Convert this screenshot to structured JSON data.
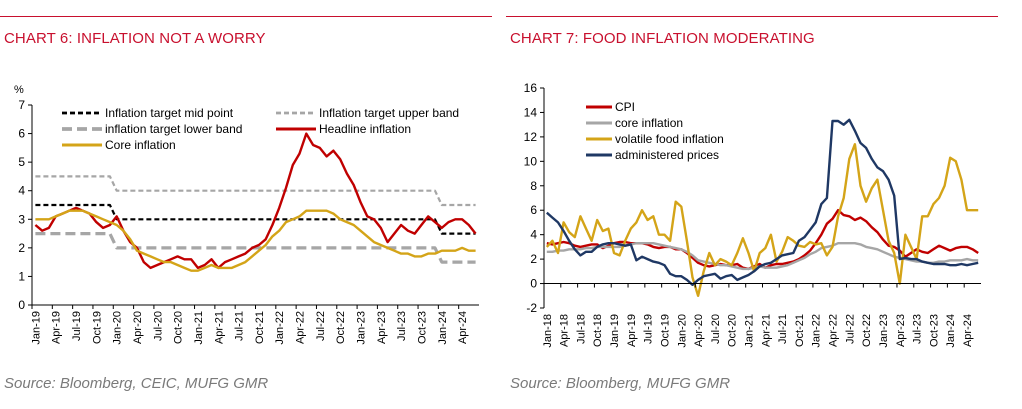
{
  "colors": {
    "rule": "#c8102e",
    "title": "#c8102e",
    "source": "#7a7a7a",
    "headline": "#c00000",
    "core": "#d4a418",
    "band_grey": "#a6a6a6",
    "mid_black": "#000000",
    "core_grey": "#a6a6a6",
    "volatile": "#d4a418",
    "administered": "#1f3864"
  },
  "chart_data": [
    {
      "type": "line",
      "title": "CHART 6: INFLATION NOT A WORRY",
      "source": "Source: Bloomberg, CEIC, MUFG GMR",
      "ylabel": "%",
      "ylim": [
        0,
        7
      ],
      "yticks": [
        "0",
        "1",
        "2",
        "3",
        "4",
        "5",
        "6",
        "7"
      ],
      "x_start": "2019-01",
      "n_months": 66,
      "xticks": [
        "Jan-19",
        "Apr-19",
        "Jul-19",
        "Oct-19",
        "Jan-20",
        "Apr-20",
        "Jul-20",
        "Oct-20",
        "Jan-21",
        "Apr-21",
        "Jul-21",
        "Oct-21",
        "Jan-22",
        "Apr-22",
        "Jul-22",
        "Oct-22",
        "Jan-23",
        "Apr-23",
        "Jul-23",
        "Oct-23",
        "Jan-24",
        "Apr-24"
      ],
      "legend": [
        "Inflation target mid point",
        "Inflation target upper band",
        "inflation target lower band",
        "Headline inflation",
        "Core inflation"
      ],
      "series": [
        {
          "name": "Inflation target mid point",
          "style": "dash-black",
          "values": [
            3.5,
            3.5,
            3.5,
            3.5,
            3.5,
            3.5,
            3.5,
            3.5,
            3.5,
            3.5,
            3.5,
            3.5,
            3,
            3,
            3,
            3,
            3,
            3,
            3,
            3,
            3,
            3,
            3,
            3,
            3,
            3,
            3,
            3,
            3,
            3,
            3,
            3,
            3,
            3,
            3,
            3,
            3,
            3,
            3,
            3,
            3,
            3,
            3,
            3,
            3,
            3,
            3,
            3,
            3,
            3,
            3,
            3,
            3,
            3,
            3,
            3,
            3,
            3,
            3,
            3,
            2.5,
            2.5,
            2.5,
            2.5,
            2.5,
            2.5
          ]
        },
        {
          "name": "Inflation target upper band",
          "style": "dash-grey-thin",
          "values": [
            4.5,
            4.5,
            4.5,
            4.5,
            4.5,
            4.5,
            4.5,
            4.5,
            4.5,
            4.5,
            4.5,
            4.5,
            4,
            4,
            4,
            4,
            4,
            4,
            4,
            4,
            4,
            4,
            4,
            4,
            4,
            4,
            4,
            4,
            4,
            4,
            4,
            4,
            4,
            4,
            4,
            4,
            4,
            4,
            4,
            4,
            4,
            4,
            4,
            4,
            4,
            4,
            4,
            4,
            4,
            4,
            4,
            4,
            4,
            4,
            4,
            4,
            4,
            4,
            4,
            4,
            3.5,
            3.5,
            3.5,
            3.5,
            3.5,
            3.5
          ]
        },
        {
          "name": "inflation target lower band",
          "style": "dash-grey-thick",
          "values": [
            2.5,
            2.5,
            2.5,
            2.5,
            2.5,
            2.5,
            2.5,
            2.5,
            2.5,
            2.5,
            2.5,
            2.5,
            2,
            2,
            2,
            2,
            2,
            2,
            2,
            2,
            2,
            2,
            2,
            2,
            2,
            2,
            2,
            2,
            2,
            2,
            2,
            2,
            2,
            2,
            2,
            2,
            2,
            2,
            2,
            2,
            2,
            2,
            2,
            2,
            2,
            2,
            2,
            2,
            2,
            2,
            2,
            2,
            2,
            2,
            2,
            2,
            2,
            2,
            2,
            2,
            1.5,
            1.5,
            1.5,
            1.5,
            1.5,
            1.5
          ]
        },
        {
          "name": "Headline inflation",
          "style": "solid-red",
          "values": [
            2.8,
            2.6,
            2.7,
            3.1,
            3.2,
            3.3,
            3.4,
            3.3,
            3.2,
            2.9,
            2.7,
            2.8,
            3.1,
            2.6,
            2.2,
            2.0,
            1.5,
            1.3,
            1.4,
            1.5,
            1.6,
            1.7,
            1.6,
            1.6,
            1.3,
            1.4,
            1.6,
            1.3,
            1.5,
            1.6,
            1.7,
            1.8,
            2.0,
            2.1,
            2.3,
            2.8,
            3.4,
            4.1,
            4.9,
            5.3,
            6.0,
            5.6,
            5.5,
            5.2,
            5.4,
            5.1,
            4.6,
            4.2,
            3.6,
            3.1,
            3.0,
            2.7,
            2.2,
            2.5,
            2.8,
            2.6,
            2.5,
            2.8,
            3.1,
            2.9,
            2.7,
            2.9,
            3.0,
            3.0,
            2.8,
            2.5
          ]
        },
        {
          "name": "Core inflation",
          "style": "solid-gold",
          "values": [
            3.0,
            3.0,
            3.0,
            3.1,
            3.2,
            3.3,
            3.3,
            3.3,
            3.2,
            3.1,
            3.0,
            2.9,
            2.8,
            2.6,
            2.3,
            1.9,
            1.8,
            1.7,
            1.6,
            1.5,
            1.5,
            1.4,
            1.3,
            1.2,
            1.2,
            1.3,
            1.4,
            1.3,
            1.3,
            1.3,
            1.4,
            1.5,
            1.7,
            1.9,
            2.1,
            2.4,
            2.6,
            2.9,
            3.0,
            3.1,
            3.3,
            3.3,
            3.3,
            3.3,
            3.2,
            3.0,
            2.9,
            2.8,
            2.6,
            2.4,
            2.2,
            2.1,
            2.0,
            1.9,
            1.8,
            1.8,
            1.7,
            1.7,
            1.8,
            1.8,
            1.9,
            1.9,
            1.9,
            2.0,
            1.9,
            1.9
          ]
        }
      ]
    },
    {
      "type": "line",
      "title": "CHART 7: FOOD INFLATION MODERATING",
      "source": "Source: Bloomberg, MUFG GMR",
      "ylim": [
        -2,
        16
      ],
      "yticks": [
        "-2",
        "0",
        "2",
        "4",
        "6",
        "8",
        "10",
        "12",
        "14",
        "16"
      ],
      "x_start": "2018-01",
      "n_months": 78,
      "xticks": [
        "Jan-18",
        "Apr-18",
        "Jul-18",
        "Oct-18",
        "Jan-19",
        "Apr-19",
        "Jul-19",
        "Oct-19",
        "Jan-20",
        "Apr-20",
        "Jul-20",
        "Oct-20",
        "Jan-21",
        "Apr-21",
        "Jul-21",
        "Oct-21",
        "Jan-22",
        "Apr-22",
        "Jul-22",
        "Oct-22",
        "Jan-23",
        "Apr-23",
        "Jul-23",
        "Oct-23",
        "Jan-24",
        "Apr-24"
      ],
      "legend": [
        "CPI",
        "core inflation",
        "volatile food inflation",
        "administered prices"
      ],
      "series": [
        {
          "name": "CPI",
          "style": "solid-red",
          "values": [
            3.3,
            3.2,
            3.3,
            3.4,
            3.3,
            3.1,
            3.0,
            3.1,
            3.2,
            3.2,
            2.9,
            3.1,
            3.3,
            3.4,
            3.4,
            3.3,
            3.3,
            3.3,
            3.2,
            3.0,
            2.9,
            3.0,
            3.0,
            2.8,
            2.8,
            2.5,
            2.1,
            1.7,
            1.5,
            1.4,
            1.5,
            1.6,
            1.5,
            1.5,
            1.6,
            1.3,
            1.2,
            1.4,
            1.6,
            1.3,
            1.5,
            1.6,
            1.6,
            1.7,
            1.8,
            2.0,
            2.3,
            2.7,
            3.3,
            4.0,
            4.9,
            5.3,
            6.0,
            5.6,
            5.5,
            5.2,
            5.4,
            5.1,
            4.6,
            4.2,
            3.6,
            3.1,
            3.0,
            2.7,
            2.2,
            2.5,
            2.8,
            2.6,
            2.5,
            2.8,
            3.1,
            2.9,
            2.7,
            2.9,
            3.0,
            3.0,
            2.8,
            2.5
          ]
        },
        {
          "name": "core inflation",
          "style": "solid-grey",
          "values": [
            2.6,
            2.6,
            2.7,
            2.7,
            2.8,
            2.8,
            2.8,
            2.9,
            2.9,
            3.0,
            3.0,
            3.0,
            3.0,
            3.0,
            3.1,
            3.2,
            3.3,
            3.3,
            3.3,
            3.3,
            3.2,
            3.1,
            3.0,
            2.9,
            2.8,
            2.6,
            2.3,
            1.9,
            1.8,
            1.7,
            1.6,
            1.5,
            1.5,
            1.4,
            1.3,
            1.2,
            1.2,
            1.3,
            1.4,
            1.3,
            1.3,
            1.3,
            1.4,
            1.5,
            1.7,
            1.9,
            2.1,
            2.4,
            2.6,
            2.9,
            3.0,
            3.1,
            3.3,
            3.3,
            3.3,
            3.3,
            3.2,
            3.0,
            2.9,
            2.8,
            2.6,
            2.4,
            2.2,
            2.1,
            2.0,
            1.9,
            1.8,
            1.8,
            1.7,
            1.7,
            1.8,
            1.8,
            1.9,
            1.9,
            1.9,
            2.0,
            1.9,
            1.9
          ]
        },
        {
          "name": "volatile food inflation",
          "style": "solid-gold",
          "values": [
            3.0,
            3.5,
            2.5,
            5.0,
            4.2,
            3.8,
            5.5,
            4.5,
            3.5,
            5.2,
            4.3,
            4.5,
            2.5,
            2.3,
            3.5,
            4.5,
            5.0,
            6.0,
            5.2,
            5.5,
            4.0,
            4.0,
            3.5,
            6.7,
            6.3,
            3.5,
            0.5,
            -1.0,
            1.0,
            2.5,
            1.5,
            2.0,
            1.8,
            1.5,
            2.5,
            3.7,
            2.5,
            1.0,
            2.5,
            2.9,
            4.0,
            1.8,
            2.6,
            3.8,
            3.5,
            3.1,
            3.0,
            3.4,
            3.2,
            3.3,
            2.3,
            3.0,
            5.5,
            7.0,
            10.2,
            11.4,
            8.0,
            6.7,
            7.8,
            8.5,
            6.0,
            3.5,
            2.5,
            0.0,
            4.0,
            3.0,
            2.0,
            5.5,
            5.5,
            6.5,
            7.0,
            8.0,
            10.3,
            10.0,
            8.5,
            6.0,
            6.0,
            6.0
          ]
        },
        {
          "name": "administered prices",
          "style": "solid-navy",
          "values": [
            5.8,
            5.4,
            5.0,
            4.3,
            3.5,
            2.8,
            2.3,
            2.6,
            2.6,
            3.0,
            3.2,
            3.3,
            3.3,
            3.2,
            3.1,
            3.2,
            1.9,
            2.2,
            2.0,
            1.8,
            1.7,
            1.5,
            0.8,
            0.6,
            0.6,
            0.3,
            -0.1,
            0.3,
            0.6,
            0.7,
            0.8,
            0.4,
            0.6,
            0.7,
            0.3,
            0.5,
            0.7,
            1.0,
            1.4,
            1.6,
            1.7,
            2.0,
            2.3,
            2.4,
            2.5,
            3.5,
            3.8,
            4.4,
            5.0,
            6.5,
            7.0,
            13.3,
            13.3,
            13.0,
            13.4,
            12.5,
            11.5,
            11.1,
            10.2,
            9.5,
            9.2,
            8.5,
            7.2,
            2.0,
            2.1,
            2.0,
            2.0,
            1.8,
            1.7,
            1.6,
            1.6,
            1.6,
            1.5,
            1.5,
            1.6,
            1.5,
            1.6,
            1.7
          ]
        }
      ]
    }
  ]
}
